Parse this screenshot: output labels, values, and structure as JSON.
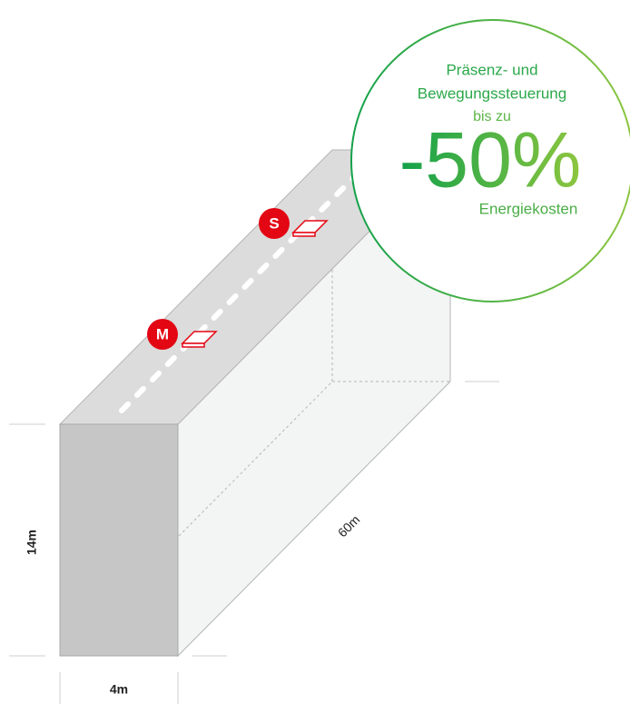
{
  "badge": {
    "line1": "Präsenz- und",
    "line2": "Bewegungssteuerung",
    "line3": "bis zu",
    "value": "-50%",
    "line4": "Energiekosten"
  },
  "markers": [
    {
      "label": "S"
    },
    {
      "label": "M"
    }
  ],
  "dimensions": {
    "height": "14m",
    "width": "4m",
    "length": "60m"
  }
}
